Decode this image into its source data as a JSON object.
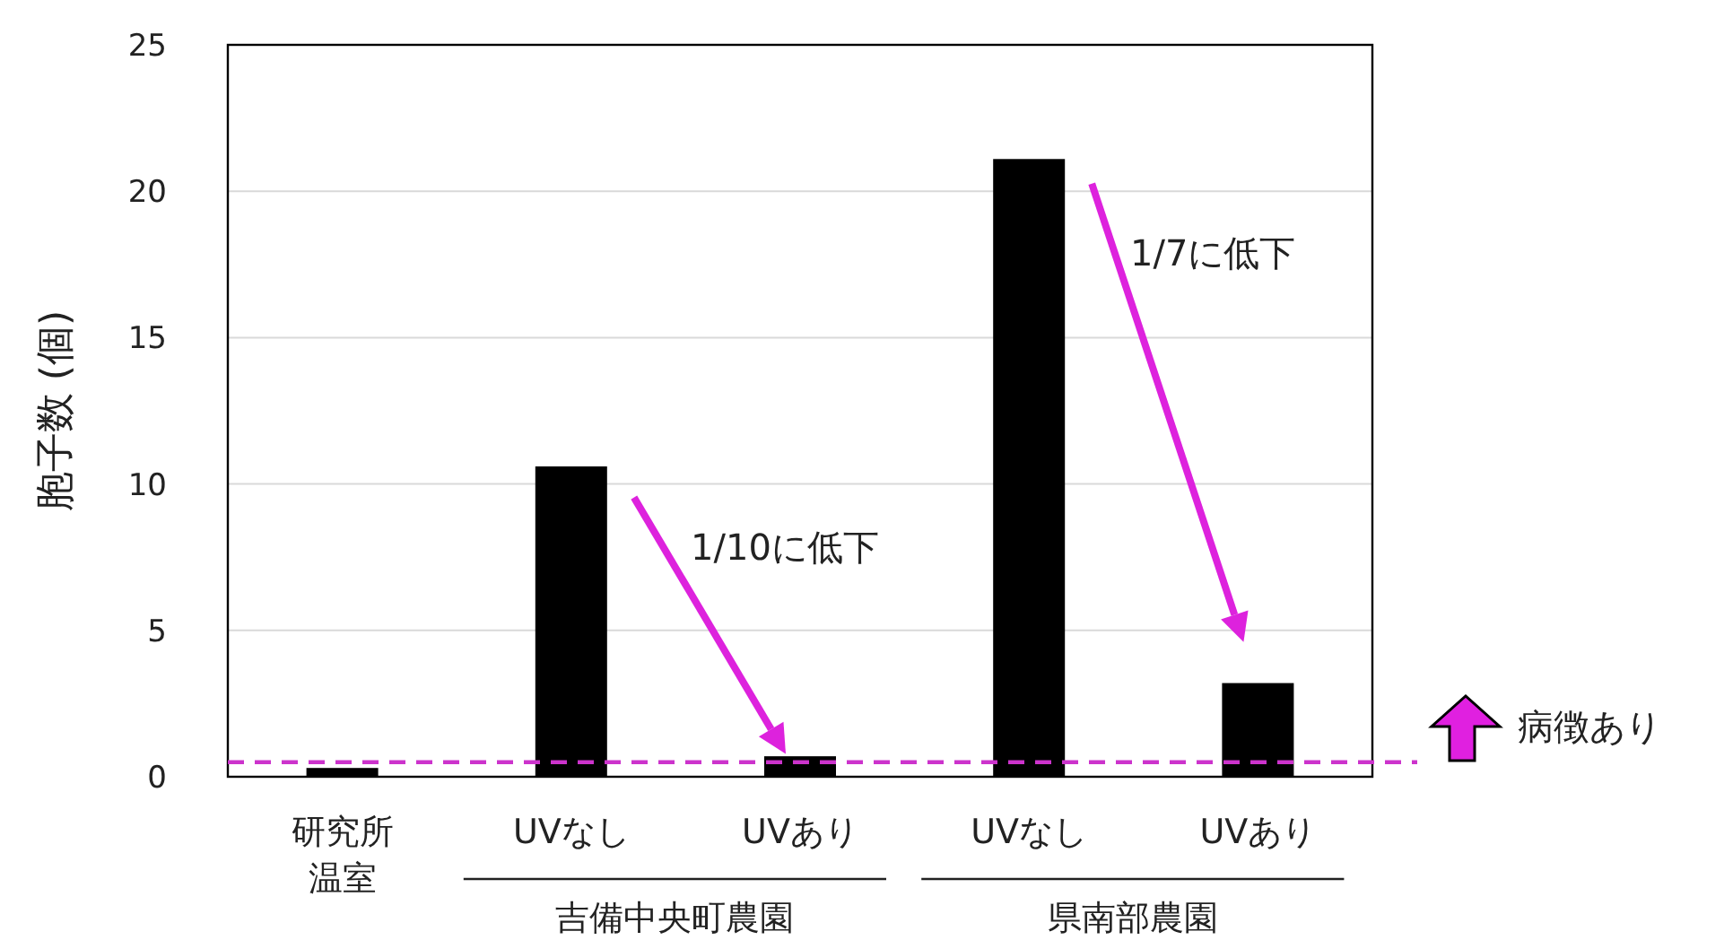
{
  "chart_data": {
    "type": "bar",
    "ylabel": "胞子数 (個)",
    "categories": [
      "研究所温室",
      "UVなし",
      "UVあり",
      "UVなし",
      "UVあり"
    ],
    "values": [
      0.3,
      10.6,
      0.7,
      21.1,
      3.2
    ],
    "color": "#000000",
    "ylim": [
      0,
      25
    ],
    "yticks": [
      0,
      5,
      10,
      15,
      20,
      25
    ],
    "grid": "y",
    "ref_lines": [
      {
        "axis": "y",
        "value": 0.5,
        "label": "病徴あり",
        "color": "#cc33cc",
        "line_style": "dashed"
      }
    ],
    "annotations": [
      "1/10に低下",
      "1/7に低下",
      "吉備中央町農園",
      "県南部農園"
    ]
  }
}
